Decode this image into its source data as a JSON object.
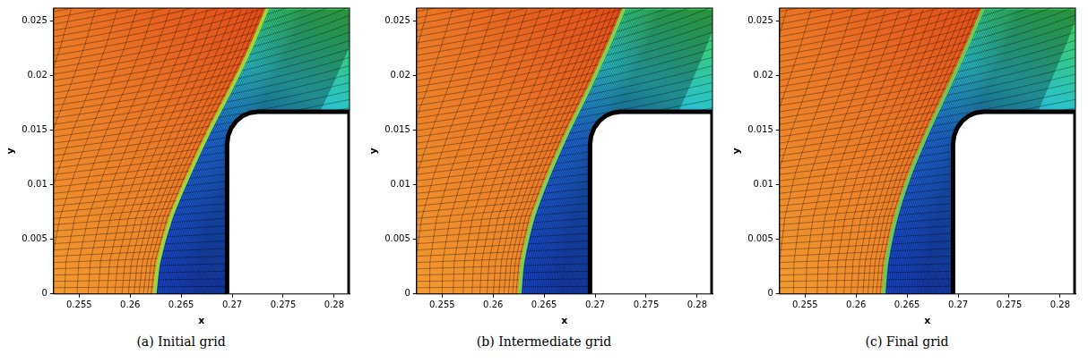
{
  "chart_data": [
    {
      "type": "contour",
      "title": "(a) Initial grid",
      "x_label": "x",
      "y_label": "y",
      "xlim": [
        0.2525,
        0.2815
      ],
      "ylim": [
        0,
        0.0262
      ],
      "xticks": [
        0.255,
        0.26,
        0.265,
        0.27,
        0.275,
        0.28
      ],
      "yticks": [
        0,
        0.005,
        0.01,
        0.015,
        0.02,
        0.025
      ],
      "grid": false,
      "shock": {
        "color": "#9ad83a",
        "x": [
          0.2624,
          0.2628,
          0.264,
          0.2658,
          0.2678,
          0.27,
          0.2718,
          0.2736
        ],
        "y": [
          0,
          0.003,
          0.007,
          0.011,
          0.015,
          0.019,
          0.0225,
          0.0265
        ]
      },
      "body": {
        "color": "#000000",
        "x": [
          0.2695,
          0.2695,
          0.2696,
          0.2699,
          0.27038,
          0.271,
          0.27172,
          0.2725,
          0.2815,
          0.2815
        ],
        "y": [
          0,
          0.0137,
          0.01448,
          0.0152,
          0.01582,
          0.0163,
          0.0166,
          0.0167,
          0.0167,
          0
        ]
      }
    },
    {
      "type": "contour",
      "title": "(b) Intermediate grid",
      "x_label": "x",
      "y_label": "y",
      "xlim": [
        0.2525,
        0.2815
      ],
      "ylim": [
        0,
        0.0262
      ],
      "xticks": [
        0.255,
        0.26,
        0.265,
        0.27,
        0.275,
        0.28
      ],
      "yticks": [
        0,
        0.005,
        0.01,
        0.015,
        0.02,
        0.025
      ],
      "grid": false,
      "shock": {
        "color": "#7fd04a",
        "x": [
          0.2626,
          0.2629,
          0.2639,
          0.2655,
          0.2674,
          0.2695,
          0.2712,
          0.273
        ],
        "y": [
          0,
          0.003,
          0.007,
          0.011,
          0.015,
          0.019,
          0.0225,
          0.0265
        ]
      },
      "body": {
        "color": "#000000",
        "x": [
          0.2695,
          0.2695,
          0.2696,
          0.2699,
          0.27038,
          0.271,
          0.27172,
          0.2725,
          0.2815,
          0.2815
        ],
        "y": [
          0,
          0.0137,
          0.01448,
          0.0152,
          0.01582,
          0.0163,
          0.0166,
          0.0167,
          0.0167,
          0
        ]
      }
    },
    {
      "type": "contour",
      "title": "(c) Final grid",
      "x_label": "x",
      "y_label": "y",
      "xlim": [
        0.2525,
        0.2815
      ],
      "ylim": [
        0,
        0.0262
      ],
      "xticks": [
        0.255,
        0.26,
        0.265,
        0.27,
        0.275,
        0.28
      ],
      "yticks": [
        0,
        0.005,
        0.01,
        0.015,
        0.02,
        0.025
      ],
      "grid": false,
      "shock": {
        "color": "#6cc850",
        "x": [
          0.2627,
          0.263,
          0.2639,
          0.2653,
          0.2671,
          0.2691,
          0.2708,
          0.2726
        ],
        "y": [
          0,
          0.003,
          0.007,
          0.011,
          0.015,
          0.019,
          0.0225,
          0.0265
        ]
      },
      "body": {
        "color": "#000000",
        "x": [
          0.2695,
          0.2695,
          0.2696,
          0.2699,
          0.27038,
          0.271,
          0.27172,
          0.2725,
          0.2815,
          0.2815
        ],
        "y": [
          0,
          0.0137,
          0.01448,
          0.0152,
          0.01582,
          0.0163,
          0.0166,
          0.0167,
          0.0167,
          0
        ]
      }
    }
  ]
}
